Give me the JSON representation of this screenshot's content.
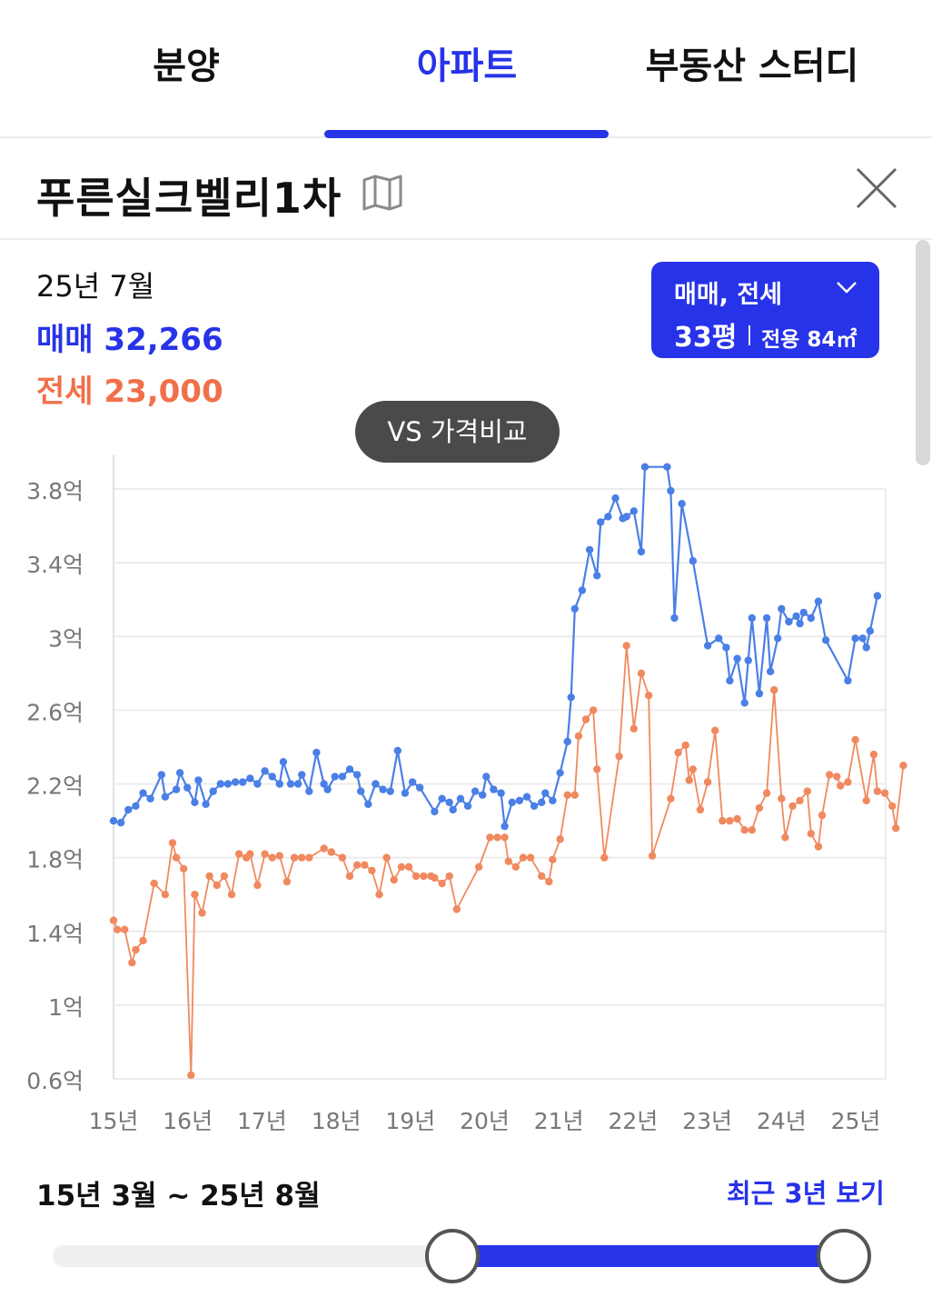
{
  "tabs": [
    {
      "label": "분양",
      "active": false
    },
    {
      "label": "아파트",
      "active": true
    },
    {
      "label": "부동산 스터디",
      "active": false
    }
  ],
  "complex": {
    "name": "푸른실크벨리1차",
    "map_icon": "map-icon",
    "close_icon": "close-icon"
  },
  "summary": {
    "date": "25년 7월",
    "sale_label": "매매",
    "sale_value": "32,266",
    "jeonse_label": "전세",
    "jeonse_value": "23,000"
  },
  "filter": {
    "type": "매매, 전세",
    "size": "33평",
    "area": "전용 84㎡"
  },
  "compare_button": "VS 가격비교",
  "chart_data": {
    "type": "line",
    "y_ticks": [
      "3.8억",
      "3.4억",
      "3억",
      "2.6억",
      "2.2억",
      "1.8억",
      "1.4억",
      "1억",
      "0.6억"
    ],
    "x_ticks": [
      "15년",
      "16년",
      "17년",
      "18년",
      "19년",
      "20년",
      "21년",
      "22년",
      "23년",
      "24년",
      "25년"
    ],
    "ylim": [
      0.6,
      3.8
    ],
    "xlim": [
      2015.0,
      2025.4
    ],
    "grid": true,
    "colors": {
      "sale": "#4a7fe6",
      "jeonse": "#f0895f"
    },
    "series": [
      {
        "key": "sale",
        "points": [
          [
            2015.0,
            2.0
          ],
          [
            2015.1,
            1.99
          ],
          [
            2015.2,
            2.06
          ],
          [
            2015.3,
            2.08
          ],
          [
            2015.4,
            2.15
          ],
          [
            2015.5,
            2.12
          ],
          [
            2015.65,
            2.25
          ],
          [
            2015.7,
            2.13
          ],
          [
            2015.85,
            2.17
          ],
          [
            2015.9,
            2.26
          ],
          [
            2016.0,
            2.18
          ],
          [
            2016.1,
            2.1
          ],
          [
            2016.15,
            2.22
          ],
          [
            2016.25,
            2.09
          ],
          [
            2016.35,
            2.16
          ],
          [
            2016.45,
            2.2
          ],
          [
            2016.55,
            2.2
          ],
          [
            2016.65,
            2.21
          ],
          [
            2016.75,
            2.21
          ],
          [
            2016.85,
            2.23
          ],
          [
            2016.95,
            2.2
          ],
          [
            2017.05,
            2.27
          ],
          [
            2017.15,
            2.24
          ],
          [
            2017.25,
            2.2
          ],
          [
            2017.3,
            2.32
          ],
          [
            2017.4,
            2.2
          ],
          [
            2017.5,
            2.2
          ],
          [
            2017.55,
            2.25
          ],
          [
            2017.65,
            2.16
          ],
          [
            2017.75,
            2.37
          ],
          [
            2017.85,
            2.2
          ],
          [
            2017.9,
            2.17
          ],
          [
            2018.0,
            2.24
          ],
          [
            2018.1,
            2.24
          ],
          [
            2018.2,
            2.28
          ],
          [
            2018.3,
            2.25
          ],
          [
            2018.35,
            2.16
          ],
          [
            2018.45,
            2.09
          ],
          [
            2018.55,
            2.2
          ],
          [
            2018.65,
            2.17
          ],
          [
            2018.75,
            2.16
          ],
          [
            2018.85,
            2.38
          ],
          [
            2018.95,
            2.15
          ],
          [
            2019.05,
            2.21
          ],
          [
            2019.15,
            2.18
          ],
          [
            2019.35,
            2.05
          ],
          [
            2019.45,
            2.12
          ],
          [
            2019.55,
            2.1
          ],
          [
            2019.6,
            2.06
          ],
          [
            2019.7,
            2.12
          ],
          [
            2019.8,
            2.08
          ],
          [
            2019.9,
            2.16
          ],
          [
            2020.0,
            2.14
          ],
          [
            2020.05,
            2.24
          ],
          [
            2020.15,
            2.17
          ],
          [
            2020.25,
            2.15
          ],
          [
            2020.3,
            1.97
          ],
          [
            2020.4,
            2.1
          ],
          [
            2020.5,
            2.11
          ],
          [
            2020.6,
            2.13
          ],
          [
            2020.7,
            2.08
          ],
          [
            2020.8,
            2.1
          ],
          [
            2020.85,
            2.15
          ],
          [
            2020.95,
            2.11
          ],
          [
            2021.05,
            2.26
          ],
          [
            2021.15,
            2.43
          ],
          [
            2021.2,
            2.67
          ],
          [
            2021.25,
            3.15
          ],
          [
            2021.35,
            3.25
          ],
          [
            2021.45,
            3.47
          ],
          [
            2021.55,
            3.33
          ],
          [
            2021.6,
            3.62
          ],
          [
            2021.7,
            3.65
          ],
          [
            2021.8,
            3.75
          ],
          [
            2021.9,
            3.64
          ],
          [
            2021.95,
            3.65
          ],
          [
            2022.05,
            3.68
          ],
          [
            2022.15,
            3.46
          ],
          [
            2022.2,
            3.92
          ],
          [
            2022.5,
            3.92
          ],
          [
            2022.55,
            3.79
          ],
          [
            2022.6,
            3.1
          ],
          [
            2022.7,
            3.72
          ],
          [
            2022.85,
            3.41
          ],
          [
            2023.05,
            2.95
          ],
          [
            2023.2,
            2.99
          ],
          [
            2023.3,
            2.94
          ],
          [
            2023.35,
            2.76
          ],
          [
            2023.45,
            2.88
          ],
          [
            2023.55,
            2.64
          ],
          [
            2023.6,
            2.87
          ],
          [
            2023.65,
            3.1
          ],
          [
            2023.75,
            2.69
          ],
          [
            2023.85,
            3.1
          ],
          [
            2023.9,
            2.81
          ],
          [
            2024.0,
            2.99
          ],
          [
            2024.05,
            3.15
          ],
          [
            2024.15,
            3.08
          ],
          [
            2024.25,
            3.11
          ],
          [
            2024.3,
            3.07
          ],
          [
            2024.35,
            3.13
          ],
          [
            2024.45,
            3.1
          ],
          [
            2024.55,
            3.19
          ],
          [
            2024.65,
            2.98
          ],
          [
            2024.95,
            2.76
          ],
          [
            2025.05,
            2.99
          ],
          [
            2025.15,
            2.99
          ],
          [
            2025.2,
            2.94
          ],
          [
            2025.25,
            3.03
          ],
          [
            2025.35,
            3.22
          ]
        ]
      },
      {
        "key": "jeonse",
        "points": [
          [
            2015.0,
            1.46
          ],
          [
            2015.05,
            1.41
          ],
          [
            2015.15,
            1.41
          ],
          [
            2015.25,
            1.23
          ],
          [
            2015.3,
            1.3
          ],
          [
            2015.4,
            1.35
          ],
          [
            2015.55,
            1.66
          ],
          [
            2015.7,
            1.6
          ],
          [
            2015.8,
            1.88
          ],
          [
            2015.85,
            1.8
          ],
          [
            2015.95,
            1.74
          ],
          [
            2016.05,
            0.62
          ],
          [
            2016.1,
            1.6
          ],
          [
            2016.2,
            1.5
          ],
          [
            2016.3,
            1.7
          ],
          [
            2016.4,
            1.65
          ],
          [
            2016.5,
            1.7
          ],
          [
            2016.6,
            1.6
          ],
          [
            2016.7,
            1.82
          ],
          [
            2016.8,
            1.8
          ],
          [
            2016.85,
            1.82
          ],
          [
            2016.95,
            1.65
          ],
          [
            2017.05,
            1.82
          ],
          [
            2017.15,
            1.8
          ],
          [
            2017.25,
            1.81
          ],
          [
            2017.35,
            1.67
          ],
          [
            2017.45,
            1.8
          ],
          [
            2017.55,
            1.8
          ],
          [
            2017.65,
            1.8
          ],
          [
            2017.85,
            1.85
          ],
          [
            2017.95,
            1.83
          ],
          [
            2018.1,
            1.8
          ],
          [
            2018.2,
            1.7
          ],
          [
            2018.3,
            1.76
          ],
          [
            2018.4,
            1.76
          ],
          [
            2018.5,
            1.73
          ],
          [
            2018.6,
            1.6
          ],
          [
            2018.7,
            1.8
          ],
          [
            2018.8,
            1.68
          ],
          [
            2018.9,
            1.75
          ],
          [
            2019.0,
            1.75
          ],
          [
            2019.1,
            1.7
          ],
          [
            2019.2,
            1.7
          ],
          [
            2019.3,
            1.7
          ],
          [
            2019.35,
            1.69
          ],
          [
            2019.45,
            1.66
          ],
          [
            2019.55,
            1.7
          ],
          [
            2019.65,
            1.52
          ],
          [
            2019.95,
            1.75
          ],
          [
            2020.1,
            1.91
          ],
          [
            2020.2,
            1.91
          ],
          [
            2020.3,
            1.91
          ],
          [
            2020.35,
            1.78
          ],
          [
            2020.45,
            1.75
          ],
          [
            2020.55,
            1.8
          ],
          [
            2020.65,
            1.8
          ],
          [
            2020.8,
            1.7
          ],
          [
            2020.9,
            1.67
          ],
          [
            2020.95,
            1.79
          ],
          [
            2021.05,
            1.9
          ],
          [
            2021.15,
            2.14
          ],
          [
            2021.25,
            2.14
          ],
          [
            2021.3,
            2.46
          ],
          [
            2021.4,
            2.55
          ],
          [
            2021.5,
            2.6
          ],
          [
            2021.55,
            2.28
          ],
          [
            2021.65,
            1.8
          ],
          [
            2021.85,
            2.35
          ],
          [
            2021.95,
            2.95
          ],
          [
            2022.05,
            2.5
          ],
          [
            2022.15,
            2.8
          ],
          [
            2022.25,
            2.68
          ],
          [
            2022.3,
            1.81
          ],
          [
            2022.55,
            2.12
          ],
          [
            2022.65,
            2.37
          ],
          [
            2022.75,
            2.41
          ],
          [
            2022.8,
            2.22
          ],
          [
            2022.85,
            2.28
          ],
          [
            2022.95,
            2.06
          ],
          [
            2023.05,
            2.21
          ],
          [
            2023.15,
            2.49
          ],
          [
            2023.25,
            2.0
          ],
          [
            2023.35,
            2.0
          ],
          [
            2023.45,
            2.01
          ],
          [
            2023.55,
            1.95
          ],
          [
            2023.65,
            1.95
          ],
          [
            2023.75,
            2.07
          ],
          [
            2023.85,
            2.15
          ],
          [
            2023.95,
            2.71
          ],
          [
            2024.05,
            2.12
          ],
          [
            2024.1,
            1.91
          ],
          [
            2024.2,
            2.08
          ],
          [
            2024.3,
            2.11
          ],
          [
            2024.4,
            2.16
          ],
          [
            2024.45,
            1.93
          ],
          [
            2024.55,
            1.86
          ],
          [
            2024.6,
            2.03
          ],
          [
            2024.7,
            2.25
          ],
          [
            2024.8,
            2.24
          ],
          [
            2024.85,
            2.19
          ],
          [
            2024.95,
            2.21
          ],
          [
            2025.05,
            2.44
          ],
          [
            2025.2,
            2.11
          ],
          [
            2025.3,
            2.36
          ],
          [
            2025.35,
            2.16
          ],
          [
            2025.45,
            2.15
          ],
          [
            2025.55,
            2.08
          ],
          [
            2025.6,
            1.96
          ],
          [
            2025.7,
            2.3
          ]
        ]
      }
    ]
  },
  "range": {
    "period": "15년 3월 ~ 25년 8월",
    "recent_button": "최근 3년 보기",
    "start_fraction": 0.49,
    "end_fraction": 0.97
  }
}
